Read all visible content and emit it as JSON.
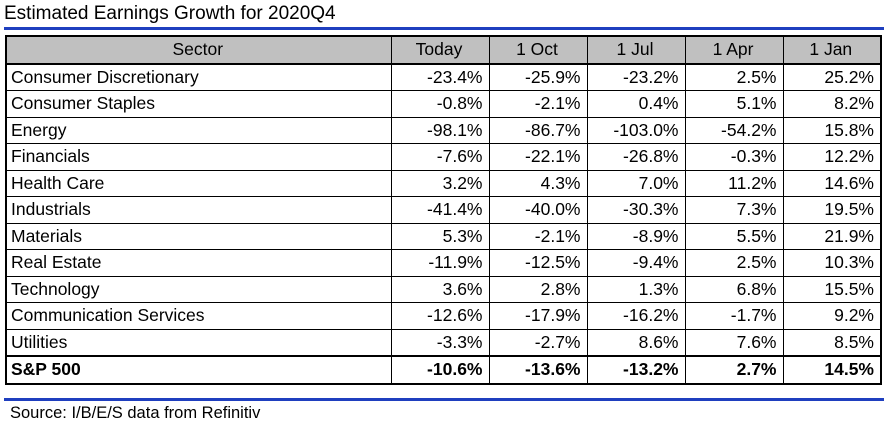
{
  "title": "Estimated Earnings Growth for 2020Q4",
  "source": "Source: I/B/E/S data from Refinitiv",
  "colors": {
    "header_bg": "#c0c0c0",
    "rule": "#1f3fbf"
  },
  "chart_data": {
    "type": "table",
    "title": "Estimated Earnings Growth for 2020Q4",
    "columns": [
      "Sector",
      "Today",
      "1 Oct",
      "1 Jul",
      "1 Apr",
      "1 Jan"
    ],
    "rows": [
      {
        "sector": "Consumer Discretionary",
        "values": [
          "-23.4%",
          "-25.9%",
          "-23.2%",
          "2.5%",
          "25.2%"
        ]
      },
      {
        "sector": "Consumer Staples",
        "values": [
          "-0.8%",
          "-2.1%",
          "0.4%",
          "5.1%",
          "8.2%"
        ]
      },
      {
        "sector": "Energy",
        "values": [
          "-98.1%",
          "-86.7%",
          "-103.0%",
          "-54.2%",
          "15.8%"
        ]
      },
      {
        "sector": "Financials",
        "values": [
          "-7.6%",
          "-22.1%",
          "-26.8%",
          "-0.3%",
          "12.2%"
        ]
      },
      {
        "sector": "Health Care",
        "values": [
          "3.2%",
          "4.3%",
          "7.0%",
          "11.2%",
          "14.6%"
        ]
      },
      {
        "sector": "Industrials",
        "values": [
          "-41.4%",
          "-40.0%",
          "-30.3%",
          "7.3%",
          "19.5%"
        ]
      },
      {
        "sector": "Materials",
        "values": [
          "5.3%",
          "-2.1%",
          "-8.9%",
          "5.5%",
          "21.9%"
        ]
      },
      {
        "sector": "Real Estate",
        "values": [
          "-11.9%",
          "-12.5%",
          "-9.4%",
          "2.5%",
          "10.3%"
        ]
      },
      {
        "sector": "Technology",
        "values": [
          "3.6%",
          "2.8%",
          "1.3%",
          "6.8%",
          "15.5%"
        ]
      },
      {
        "sector": "Communication Services",
        "values": [
          "-12.6%",
          "-17.9%",
          "-16.2%",
          "-1.7%",
          "9.2%"
        ]
      },
      {
        "sector": "Utilities",
        "values": [
          "-3.3%",
          "-2.7%",
          "8.6%",
          "7.6%",
          "8.5%"
        ]
      }
    ],
    "total": {
      "sector": "S&P 500",
      "values": [
        "-10.6%",
        "-13.6%",
        "-13.2%",
        "2.7%",
        "14.5%"
      ]
    }
  }
}
